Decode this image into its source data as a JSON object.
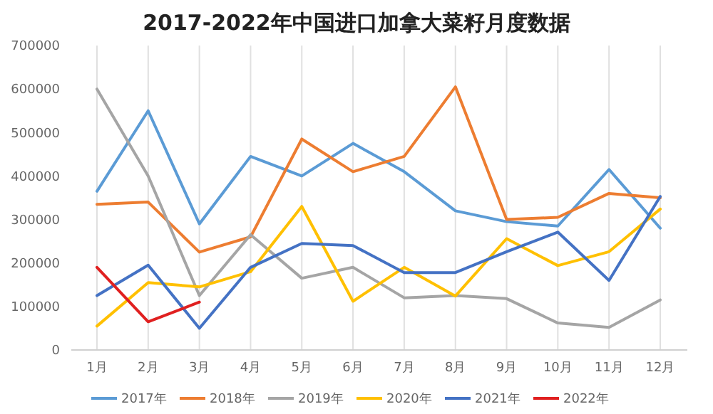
{
  "chart_data": {
    "type": "line",
    "title": "2017-2022年中国进口加拿大菜籽月度数据",
    "categories": [
      "1月",
      "2月",
      "3月",
      "4月",
      "5月",
      "6月",
      "7月",
      "8月",
      "9月",
      "10月",
      "11月",
      "12月"
    ],
    "ylim": [
      0,
      700000
    ],
    "yticks": [
      0,
      100000,
      200000,
      300000,
      400000,
      500000,
      600000,
      700000
    ],
    "grid": "x",
    "legend": "bottom",
    "marker": "none",
    "series": [
      {
        "name": "2017年",
        "color": "#5b9bd5",
        "values": [
          365000,
          550000,
          290000,
          445000,
          400000,
          475000,
          410000,
          320000,
          295000,
          285000,
          415000,
          280000
        ]
      },
      {
        "name": "2018年",
        "color": "#ed7d31",
        "values": [
          335000,
          340000,
          225000,
          260000,
          485000,
          410000,
          445000,
          605000,
          300000,
          305000,
          360000,
          350000
        ]
      },
      {
        "name": "2019年",
        "color": "#a5a5a5",
        "values": [
          600000,
          400000,
          125000,
          265000,
          165000,
          190000,
          120000,
          125000,
          118000,
          62000,
          52000,
          115000
        ]
      },
      {
        "name": "2020年",
        "color": "#ffc000",
        "values": [
          55000,
          155000,
          145000,
          180000,
          330000,
          112000,
          190000,
          124000,
          256000,
          194000,
          226000,
          324000
        ]
      },
      {
        "name": "2021年",
        "color": "#4472c4",
        "values": [
          125000,
          195000,
          50000,
          190000,
          245000,
          240000,
          178000,
          178000,
          226000,
          271000,
          160000,
          353000
        ]
      },
      {
        "name": "2022年",
        "color": "#e02020",
        "values": [
          190000,
          65000,
          110000,
          null,
          null,
          null,
          null,
          null,
          null,
          null,
          null,
          null
        ]
      }
    ]
  }
}
